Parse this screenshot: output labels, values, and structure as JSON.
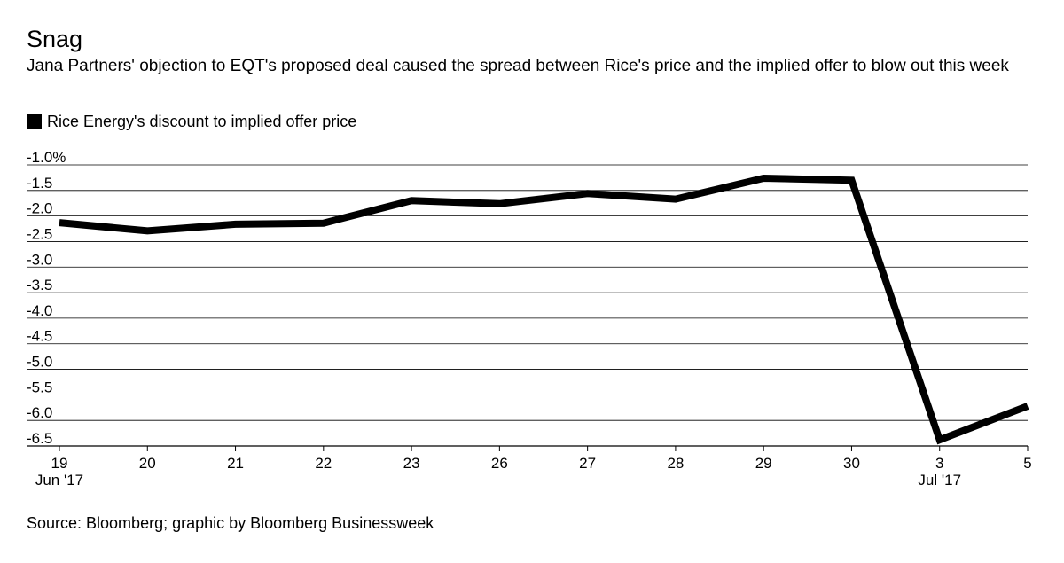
{
  "chart_data": {
    "type": "line",
    "title": "Snag",
    "subtitle": "Jana Partners' objection to EQT's proposed deal caused the spread between Rice's price and the implied offer to blow out this week",
    "legend": [
      {
        "label": "Rice Energy's discount to implied offer price",
        "color": "#000000"
      }
    ],
    "categories": [
      "19",
      "20",
      "21",
      "22",
      "23",
      "26",
      "27",
      "28",
      "29",
      "30",
      "3",
      "5"
    ],
    "month_labels": [
      {
        "index": 0,
        "label": "Jun '17"
      },
      {
        "index": 10,
        "label": "Jul '17"
      }
    ],
    "series": [
      {
        "name": "Rice Energy's discount to implied offer price",
        "values": [
          -2.13,
          -2.29,
          -2.16,
          -2.14,
          -1.7,
          -1.76,
          -1.56,
          -1.67,
          -1.26,
          -1.3,
          -6.38,
          -5.72
        ]
      }
    ],
    "yticks": [
      "-1.0%",
      "-1.5",
      "-2.0",
      "-2.5",
      "-3.0",
      "-3.5",
      "-4.0",
      "-4.5",
      "-5.0",
      "-5.5",
      "-6.0",
      "-6.5"
    ],
    "ylim": [
      -6.5,
      -1.0
    ],
    "xlabel": "",
    "ylabel": "",
    "grid": true,
    "legend_position": "top-left",
    "source": "Source: Bloomberg; graphic by Bloomberg Businessweek"
  }
}
